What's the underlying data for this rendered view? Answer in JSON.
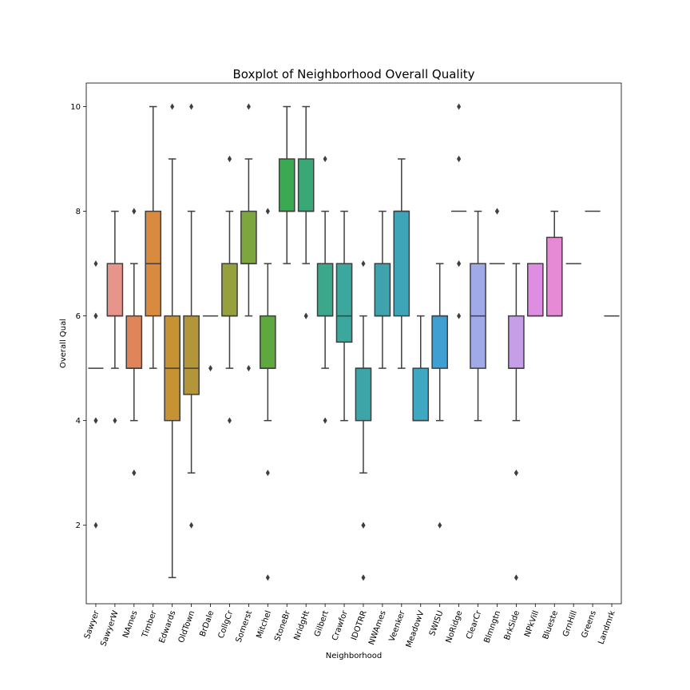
{
  "chart_data": {
    "type": "box",
    "title": "Boxplot of Neighborhood Overall Quality",
    "xlabel": "Neighborhood",
    "ylabel": "Overall Qual",
    "ylim": [
      0.5,
      10.45
    ],
    "yticks": [
      2,
      4,
      6,
      8,
      10
    ],
    "grid": false,
    "legend": "none",
    "line_color": "#3f3f3f",
    "series": [
      {
        "category": "Sawyer",
        "color": "#3274a1",
        "q1": 5,
        "median": 5,
        "q3": 5,
        "whisker_low": 5,
        "whisker_high": 5,
        "outliers": [
          2,
          4,
          4,
          6,
          6,
          7
        ]
      },
      {
        "category": "SawyerW",
        "color": "#e8948a",
        "q1": 6,
        "median": 6,
        "q3": 7,
        "whisker_low": 5,
        "whisker_high": 8,
        "outliers": [
          4
        ]
      },
      {
        "category": "NAmes",
        "color": "#e0855a",
        "q1": 5,
        "median": 5,
        "q3": 6,
        "whisker_low": 4,
        "whisker_high": 7,
        "outliers": [
          3,
          3,
          8,
          8
        ]
      },
      {
        "category": "Timber",
        "color": "#d88a3e",
        "q1": 6,
        "median": 7,
        "q3": 8,
        "whisker_low": 5,
        "whisker_high": 10,
        "outliers": []
      },
      {
        "category": "Edwards",
        "color": "#c69233",
        "q1": 4,
        "median": 5,
        "q3": 6,
        "whisker_low": 1,
        "whisker_high": 9,
        "outliers": [
          10
        ]
      },
      {
        "category": "OldTown",
        "color": "#b4953a",
        "q1": 4.5,
        "median": 5,
        "q3": 6,
        "whisker_low": 3,
        "whisker_high": 8,
        "outliers": [
          2,
          10
        ]
      },
      {
        "category": "BrDale",
        "color": "#a39b3c",
        "q1": 6,
        "median": 6,
        "q3": 6,
        "whisker_low": 6,
        "whisker_high": 6,
        "outliers": [
          5
        ]
      },
      {
        "category": "CollgCr",
        "color": "#96a03c",
        "q1": 6,
        "median": 6,
        "q3": 7,
        "whisker_low": 5,
        "whisker_high": 8,
        "outliers": [
          4,
          9,
          9
        ]
      },
      {
        "category": "Somerst",
        "color": "#7ea63e",
        "q1": 7,
        "median": 7,
        "q3": 8,
        "whisker_low": 6,
        "whisker_high": 9,
        "outliers": [
          5,
          10
        ]
      },
      {
        "category": "Mitchel",
        "color": "#5ea83e",
        "q1": 5,
        "median": 5,
        "q3": 6,
        "whisker_low": 4,
        "whisker_high": 7,
        "outliers": [
          1,
          3,
          8,
          8
        ]
      },
      {
        "category": "StoneBr",
        "color": "#3ba852",
        "q1": 8,
        "median": 8,
        "q3": 9,
        "whisker_low": 7,
        "whisker_high": 10,
        "outliers": []
      },
      {
        "category": "NridgHt",
        "color": "#3aa876",
        "q1": 8,
        "median": 8,
        "q3": 9,
        "whisker_low": 7,
        "whisker_high": 10,
        "outliers": [
          6,
          6
        ]
      },
      {
        "category": "Gilbert",
        "color": "#3ba88c",
        "q1": 6,
        "median": 6,
        "q3": 7,
        "whisker_low": 5,
        "whisker_high": 8,
        "outliers": [
          4,
          9
        ]
      },
      {
        "category": "Crawfor",
        "color": "#3ca79c",
        "q1": 5.5,
        "median": 6,
        "q3": 7,
        "whisker_low": 4,
        "whisker_high": 8,
        "outliers": []
      },
      {
        "category": "IDOTRR",
        "color": "#3da4a7",
        "q1": 4,
        "median": 5,
        "q3": 5,
        "whisker_low": 3,
        "whisker_high": 6,
        "outliers": [
          1,
          2,
          2,
          7
        ]
      },
      {
        "category": "NWAmes",
        "color": "#3ea3ad",
        "q1": 6,
        "median": 6,
        "q3": 7,
        "whisker_low": 5,
        "whisker_high": 8,
        "outliers": []
      },
      {
        "category": "Veenker",
        "color": "#3ea4b8",
        "q1": 6,
        "median": 8,
        "q3": 8,
        "whisker_low": 5,
        "whisker_high": 9,
        "outliers": []
      },
      {
        "category": "MeadowV",
        "color": "#3ea7c1",
        "q1": 4,
        "median": 4,
        "q3": 5,
        "whisker_low": 4,
        "whisker_high": 6,
        "outliers": []
      },
      {
        "category": "SWISU",
        "color": "#3f9fd3",
        "q1": 5,
        "median": 6,
        "q3": 6,
        "whisker_low": 4,
        "whisker_high": 7,
        "outliers": [
          2
        ]
      },
      {
        "category": "NoRidge",
        "color": "#5aa8d8",
        "q1": 8,
        "median": 8,
        "q3": 8,
        "whisker_low": 8,
        "whisker_high": 8,
        "outliers": [
          6,
          7,
          7,
          9,
          9,
          10
        ]
      },
      {
        "category": "ClearCr",
        "color": "#a0aae8",
        "q1": 5,
        "median": 6,
        "q3": 7,
        "whisker_low": 4,
        "whisker_high": 8,
        "outliers": []
      },
      {
        "category": "Blmngtn",
        "color": "#b1a6e8",
        "q1": 7,
        "median": 7,
        "q3": 7,
        "whisker_low": 7,
        "whisker_high": 7,
        "outliers": [
          8,
          8
        ]
      },
      {
        "category": "BrkSide",
        "color": "#c69ee8",
        "q1": 5,
        "median": 5,
        "q3": 6,
        "whisker_low": 4,
        "whisker_high": 7,
        "outliers": [
          1,
          3,
          3
        ]
      },
      {
        "category": "NPkVill",
        "color": "#dd8ee0",
        "q1": 6,
        "median": 6,
        "q3": 7,
        "whisker_low": 6,
        "whisker_high": 7,
        "outliers": []
      },
      {
        "category": "Blueste",
        "color": "#e78ad6",
        "q1": 6,
        "median": 6,
        "q3": 7.5,
        "whisker_low": 6,
        "whisker_high": 8,
        "outliers": []
      },
      {
        "category": "GrnHill",
        "color": "#e88dc4",
        "q1": 7,
        "median": 7,
        "q3": 7,
        "whisker_low": 7,
        "whisker_high": 7,
        "outliers": []
      },
      {
        "category": "Greens",
        "color": "#e890b4",
        "q1": 8,
        "median": 8,
        "q3": 8,
        "whisker_low": 8,
        "whisker_high": 8,
        "outliers": []
      },
      {
        "category": "Landmrk",
        "color": "#e894a8",
        "q1": 6,
        "median": 6,
        "q3": 6,
        "whisker_low": 6,
        "whisker_high": 6,
        "outliers": []
      }
    ]
  }
}
